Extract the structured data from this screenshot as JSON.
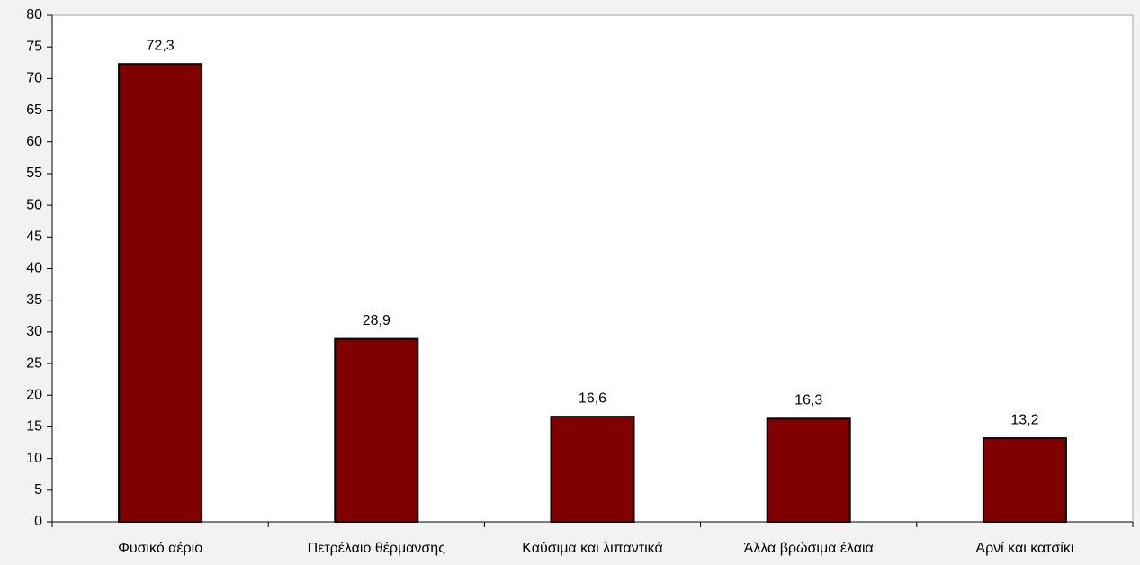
{
  "chart_data": {
    "type": "bar",
    "categories": [
      "Φυσικό αέριο",
      "Πετρέλαιο θέρμανσης",
      "Καύσιμα και λιπαντικά",
      "Άλλα βρώσιμα έλαια",
      "Αρνί και κατσίκι"
    ],
    "values": [
      72.3,
      28.9,
      16.6,
      16.3,
      13.2
    ],
    "value_labels": [
      "72,3",
      "28,9",
      "16,6",
      "16,3",
      "13,2"
    ],
    "color": "#800000",
    "ylim": [
      0,
      80
    ],
    "yticks": [
      0,
      5,
      10,
      15,
      20,
      25,
      30,
      35,
      40,
      45,
      50,
      55,
      60,
      65,
      70,
      75,
      80
    ]
  }
}
